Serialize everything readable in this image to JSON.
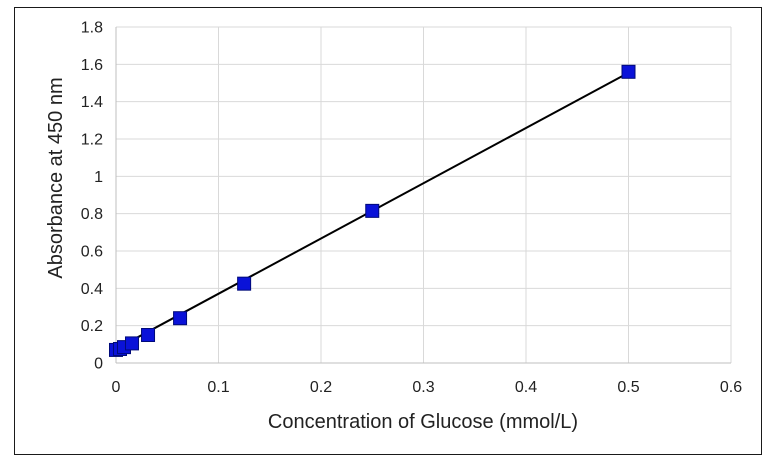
{
  "chart_data": {
    "type": "scatter",
    "title": "",
    "xlabel": "Concentration of Glucose (mmol/L)",
    "ylabel": "Absorbance at 450 nm",
    "xlim": [
      0,
      0.6
    ],
    "ylim": [
      0,
      1.8
    ],
    "x_ticks": [
      "0",
      "0.1",
      "0.2",
      "0.3",
      "0.4",
      "0.5",
      "0.6"
    ],
    "y_ticks": [
      "0",
      "0.2",
      "0.4",
      "0.6",
      "0.8",
      "1",
      "1.2",
      "1.4",
      "1.6",
      "1.8"
    ],
    "grid": true,
    "legend": "none",
    "series": [
      {
        "marker": "square",
        "color": "#0a12d8",
        "x": [
          0,
          0.0039,
          0.0078,
          0.0156,
          0.03125,
          0.0625,
          0.125,
          0.25,
          0.5
        ],
        "y": [
          0.07,
          0.075,
          0.085,
          0.105,
          0.15,
          0.24,
          0.425,
          0.815,
          1.56
        ]
      }
    ],
    "trendline": {
      "type": "linear",
      "color": "#000000",
      "x": [
        0,
        0.5
      ],
      "y": [
        0.075,
        1.555
      ]
    },
    "colors": {
      "marker": "#0a12d8",
      "marker_edge": "#000a7a",
      "trendline": "#000000",
      "grid": "#d9d9d9",
      "frame": "#1a1a1a"
    }
  }
}
